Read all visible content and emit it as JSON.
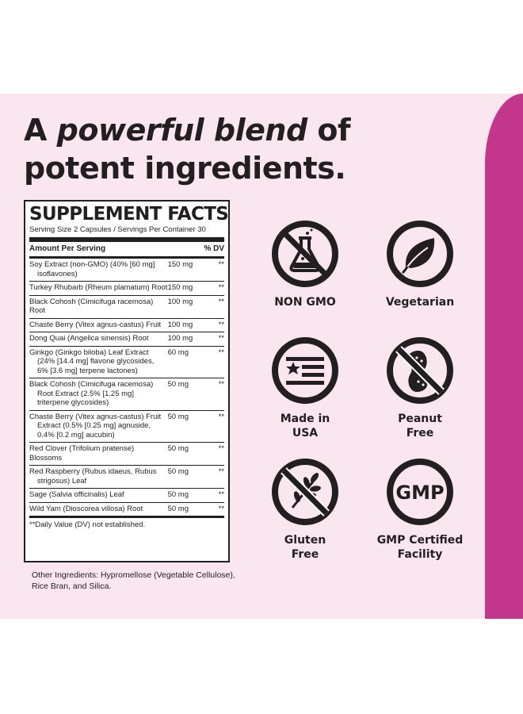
{
  "headline": {
    "word_a": "A",
    "emphasis": "powerful blend",
    "rest_line1": "of",
    "line2": "potent ingredients."
  },
  "facts": {
    "title": "SUPPLEMENT FACTS",
    "serving": "Serving Size 2 Capsules / Servings Per Container 30",
    "amount_header": "Amount Per Serving",
    "dv_header": "% DV",
    "note": "**Daily Value (DV) not established.",
    "ingredients": [
      {
        "l1": "Soy Extract (non-GMO) (40% [60 mg]",
        "l2": "isoflavones)",
        "amount": "150 mg",
        "dv": "**"
      },
      {
        "l1": "Turkey Rhubarb (Rheum plamatum) Root",
        "amount": "150 mg",
        "dv": "**"
      },
      {
        "l1": "Black Cohosh (Cimicifuga racemosa) Root",
        "amount": "100 mg",
        "dv": "**"
      },
      {
        "l1": "Chaste Berry (Vitex agnus-castus) Fruit",
        "amount": "100 mg",
        "dv": "**"
      },
      {
        "l1": "Dong Quai (Angelica sinensis) Root",
        "amount": "100 mg",
        "dv": "**"
      },
      {
        "l1": "Ginkgo (Ginkgo biloba) Leaf Extract",
        "l2": "(24% [14.4 mg] flavone glycosides,",
        "l3": "6% [3.6 mg] terpene lactones)",
        "amount": "60 mg",
        "dv": "**"
      },
      {
        "l1": "Black Cohosh (Cimicifuga racemosa)",
        "l2": "Root Extract (2.5% [1.25 mg]",
        "l3": "triterpene glycosides)",
        "amount": "50 mg",
        "dv": "**"
      },
      {
        "l1": "Chaste Berry (Vitex agnus-castus) Fruit",
        "l2": "Extract (0.5% [0.25 mg] agnuside,",
        "l3": "0.4% [0.2 mg] aucubin)",
        "amount": "50 mg",
        "dv": "**"
      },
      {
        "l1": "Red Clover (Trifolium pratense) Blossoms",
        "amount": "50 mg",
        "dv": "**"
      },
      {
        "l1": "Red Raspberry (Rubus idaeus, Rubus",
        "l2": "strigosus) Leaf",
        "amount": "50 mg",
        "dv": "**"
      },
      {
        "l1": "Sage (Salvia officinalis) Leaf",
        "amount": "50 mg",
        "dv": "**"
      },
      {
        "l1": "Wild Yam (Dioscorea villosa) Root",
        "amount": "50 mg",
        "dv": "**"
      }
    ]
  },
  "other": {
    "line1": "Other Ingredients: Hypromellose (Vegetable Cellulose),",
    "line2": "Rice Bran, and Silica."
  },
  "badges": {
    "non_gmo": {
      "label": "NON GMO",
      "icon": "beaker-crossed-icon"
    },
    "vegetarian": {
      "label": "Vegetarian",
      "icon": "leaf-icon"
    },
    "usa": {
      "line1": "Made in",
      "line2": "USA",
      "icon": "flag-icon"
    },
    "peanut": {
      "line1": "Peanut",
      "line2": "Free",
      "icon": "peanut-crossed-icon"
    },
    "gluten": {
      "line1": "Gluten",
      "line2": "Free",
      "icon": "wheat-crossed-icon"
    },
    "gmp": {
      "line1": "GMP Certified",
      "line2": "Facility",
      "icon_text": "GMP",
      "icon": "gmp-icon"
    }
  },
  "colors": {
    "background_panel": "#f9e6ef",
    "accent_stripe": "#c2378b",
    "text": "#231f20"
  }
}
